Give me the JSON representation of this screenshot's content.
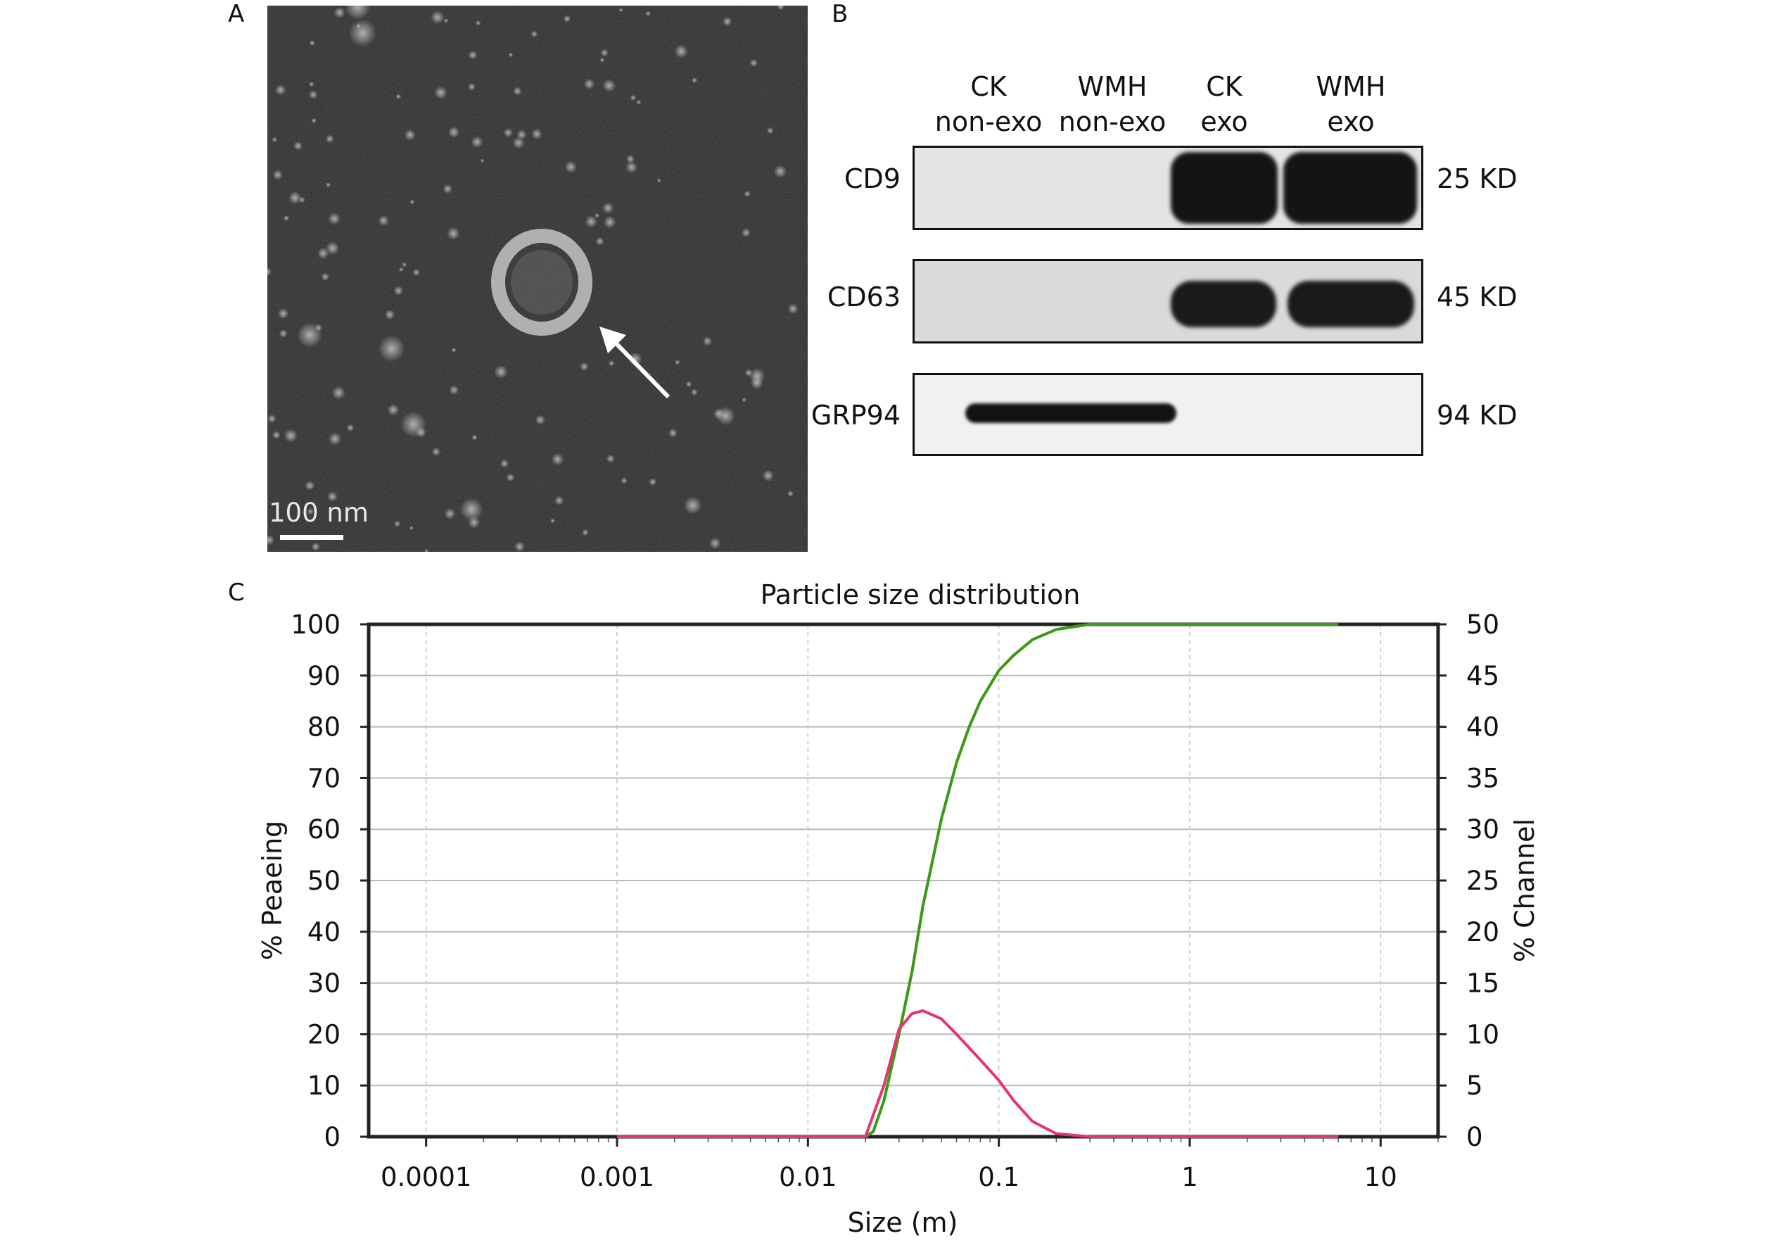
{
  "panel_letters": {
    "a": "A",
    "b": "B",
    "c": "C"
  },
  "panelA": {
    "scale_bar_label": "100 nm"
  },
  "panelB": {
    "lanes": [
      {
        "line1": "CK",
        "line2": "non-exo"
      },
      {
        "line1": "WMH",
        "line2": "non-exo"
      },
      {
        "line1": "CK",
        "line2": "exo"
      },
      {
        "line1": "WMH",
        "line2": "exo"
      }
    ],
    "blots": [
      {
        "protein": "CD9",
        "weight": "25 KD",
        "band_lanes": [
          false,
          false,
          true,
          true
        ]
      },
      {
        "protein": "CD63",
        "weight": "45 KD",
        "band_lanes": [
          false,
          false,
          true,
          true
        ]
      },
      {
        "protein": "GRP94",
        "weight": "94 KD",
        "band_lanes": [
          true,
          true,
          false,
          false
        ]
      }
    ]
  },
  "chart_data": {
    "type": "line",
    "title": "Particle size distribution",
    "xlabel": "Size (m)",
    "ylabel_left": "% Peaeing",
    "ylabel_right": "% Channel",
    "x_scale": "log",
    "xlim": [
      5e-05,
      20
    ],
    "x_ticks": [
      {
        "value": 0.0001,
        "label": "0.0001"
      },
      {
        "value": 0.001,
        "label": "0.001"
      },
      {
        "value": 0.01,
        "label": "0.01"
      },
      {
        "value": 0.1,
        "label": "0.1"
      },
      {
        "value": 1,
        "label": "1"
      },
      {
        "value": 10,
        "label": "10"
      }
    ],
    "ylim_left": [
      0,
      100
    ],
    "ylim_right": [
      0,
      50
    ],
    "y_ticks_left": [
      0,
      10,
      20,
      30,
      40,
      50,
      60,
      70,
      80,
      90,
      100
    ],
    "y_ticks_right": [
      0,
      5,
      10,
      15,
      20,
      25,
      30,
      35,
      40,
      45,
      50
    ],
    "grid": true,
    "series": [
      {
        "color": "#d2a01e",
        "axis": "left",
        "x": [
          0.001,
          0.01,
          0.02,
          0.022,
          0.025,
          0.03,
          0.035,
          0.04,
          0.05,
          0.06,
          0.07,
          0.08,
          0.1,
          0.12,
          0.15,
          0.2,
          0.3,
          1,
          6
        ],
        "y": [
          0,
          0,
          0,
          1,
          7,
          20,
          32,
          45,
          62,
          73,
          80,
          85,
          91,
          94,
          97,
          99,
          100,
          100,
          100
        ]
      },
      {
        "color": "#3a9a1a",
        "axis": "left",
        "x": [
          0.001,
          0.01,
          0.02,
          0.022,
          0.025,
          0.03,
          0.035,
          0.04,
          0.05,
          0.06,
          0.07,
          0.08,
          0.1,
          0.12,
          0.15,
          0.2,
          0.3,
          1,
          6
        ],
        "y": [
          0,
          0,
          0,
          1,
          7,
          20,
          32,
          45,
          62,
          73,
          80,
          85,
          91,
          94,
          97,
          99,
          100,
          100,
          100
        ]
      },
      {
        "color": "#e6356e",
        "axis": "right",
        "x": [
          0.001,
          0.01,
          0.02,
          0.025,
          0.03,
          0.035,
          0.04,
          0.05,
          0.06,
          0.08,
          0.1,
          0.12,
          0.15,
          0.2,
          0.3,
          1,
          6
        ],
        "y": [
          0,
          0,
          0,
          5,
          10.5,
          12,
          12.3,
          11.5,
          10,
          7.5,
          5.5,
          3.5,
          1.5,
          0.3,
          0,
          0,
          0
        ]
      }
    ]
  }
}
